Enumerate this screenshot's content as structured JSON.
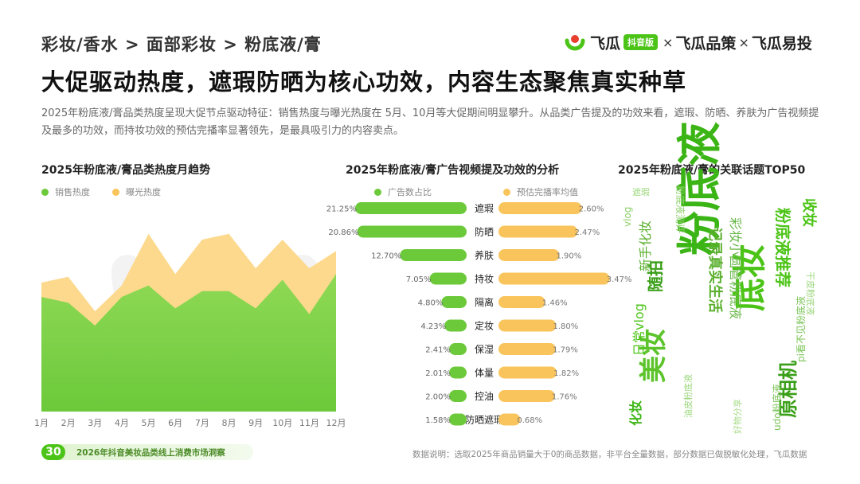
{
  "breadcrumb": "彩妆/香水 > 面部彩妆 > 粉底液/膏",
  "title": "大促驱动热度，遮瑕防晒为核心功效，内容生态聚焦真实种草",
  "intro": "2025年粉底液/膏品类热度呈现大促节点驱动特征：销售热度与曝光热度在 5月、10月等大促期间明显攀升。从品类广告提及的功效来看，遮瑕、防晒、养肤为广告视频提及最多的功效，而持妆功效的预估完播率显著领先，是最具吸引力的内容卖点。",
  "brand": {
    "name1": "飞瓜",
    "badge": "抖音版",
    "sep1": "×",
    "name2": "飞瓜品策",
    "sep2": "×",
    "name3": "飞瓜易投",
    "color": "#4cc417"
  },
  "colors": {
    "green": "#6cc93a",
    "green_light": "#8fd956",
    "orange": "#f9c45b",
    "orange_light": "#fcd98c",
    "bar_green_bg": "#dff2d0",
    "bar_orange_bg": "#fde7b8"
  },
  "chart_data": [
    {
      "type": "area",
      "title": "2025年粉底液/膏品类热度月趋势",
      "categories": [
        "1月",
        "2月",
        "3月",
        "4月",
        "5月",
        "6月",
        "7月",
        "8月",
        "9月",
        "10月",
        "11月",
        "12月"
      ],
      "series": [
        {
          "name": "销售热度",
          "values": [
            40,
            38,
            30,
            40,
            44,
            36,
            42,
            42,
            36,
            46,
            34,
            48
          ]
        },
        {
          "name": "曝光热度",
          "values": [
            45,
            47,
            35,
            44,
            62,
            48,
            60,
            62,
            50,
            60,
            50,
            56
          ]
        }
      ],
      "ylim": [
        0,
        70
      ],
      "legend": "top-left",
      "grid": false
    },
    {
      "type": "bar",
      "title": "2025年粉底液/膏广告视频提及功效的分析",
      "categories": [
        "遮瑕",
        "防晒",
        "养肤",
        "持妆",
        "隔离",
        "定妆",
        "保湿",
        "体量",
        "控油",
        "防晒遮瑕"
      ],
      "series": [
        {
          "name": "广告数占比",
          "values": [
            21.25,
            20.86,
            12.7,
            7.05,
            4.8,
            4.23,
            2.41,
            2.01,
            2.0,
            1.58
          ],
          "labels": [
            "21.25%",
            "20.86%",
            "12.70%",
            "7.05%",
            "4.80%",
            "4.23%",
            "2.41%",
            "2.01%",
            "2.00%",
            "1.58%"
          ]
        },
        {
          "name": "预估完播率均值",
          "values": [
            2.6,
            2.47,
            1.9,
            3.47,
            1.46,
            1.8,
            1.79,
            1.82,
            1.76,
            0.68
          ],
          "labels": [
            "2.60%",
            "2.47%",
            "1.90%",
            "3.47%",
            "1.46%",
            "1.80%",
            "1.79%",
            "1.82%",
            "1.76%",
            "0.68%"
          ]
        }
      ],
      "xlim_left": [
        0,
        22
      ],
      "xlim_right": [
        0,
        3.6
      ],
      "legend": "top"
    }
  ],
  "wordcloud": {
    "title": "2025年粉底液/膏的关联话题TOP50",
    "words": [
      {
        "text": "粉底液",
        "size": 56,
        "color": "#3bb515",
        "weight": "bold"
      },
      {
        "text": "底妆",
        "size": 42,
        "color": "#4cc417",
        "weight": "bold"
      },
      {
        "text": "美妆",
        "size": 34,
        "color": "#5cc42a",
        "weight": "bold"
      },
      {
        "text": "原相机",
        "size": 24,
        "color": "#3a9f18",
        "weight": "bold"
      },
      {
        "text": "粉底液推荐",
        "size": 20,
        "color": "#4cc417",
        "weight": "bold"
      },
      {
        "text": "记录真实生活",
        "size": 18,
        "color": "#5cb030",
        "weight": "bold"
      },
      {
        "text": "彩妆小圆管粉底液",
        "size": 16,
        "color": "#6ab84a",
        "weight": "normal"
      },
      {
        "text": "随拍",
        "size": 20,
        "color": "#3a9f18",
        "weight": "bold"
      },
      {
        "text": "日常vlog",
        "size": 16,
        "color": "#4cc417",
        "weight": "normal"
      },
      {
        "text": "新手化妆",
        "size": 16,
        "color": "#5cb030",
        "weight": "normal"
      },
      {
        "text": "化妆",
        "size": 16,
        "color": "#3bb515",
        "weight": "bold"
      },
      {
        "text": "收妆",
        "size": 18,
        "color": "#4cc417",
        "weight": "bold"
      },
      {
        "text": "粉底液测评",
        "size": 12,
        "color": "#8dd06a",
        "weight": "normal"
      },
      {
        "text": "vlog",
        "size": 12,
        "color": "#8dd06a",
        "weight": "normal"
      },
      {
        "text": "pi看不见粉底液",
        "size": 12,
        "color": "#7ac456",
        "weight": "normal"
      },
      {
        "text": "udo粉底液",
        "size": 12,
        "color": "#7ac456",
        "weight": "normal"
      },
      {
        "text": "干皮粉底液",
        "size": 11,
        "color": "#9bd77b",
        "weight": "normal"
      },
      {
        "text": "油皮粉底液",
        "size": 11,
        "color": "#9bd77b",
        "weight": "normal"
      },
      {
        "text": "遮瑕",
        "size": 11,
        "color": "#9bd77b",
        "weight": "normal"
      },
      {
        "text": "好物分享",
        "size": 11,
        "color": "#a8dc8a",
        "weight": "normal"
      }
    ]
  },
  "footer": {
    "page_number": "30",
    "report_name": "2026年抖音美妆品类线上消费市场洞察",
    "note": "数据说明：选取2025年商品销量大于0的商品数据，非平台全量数据，部分数据已做脱敏化处理，飞瓜数据"
  }
}
